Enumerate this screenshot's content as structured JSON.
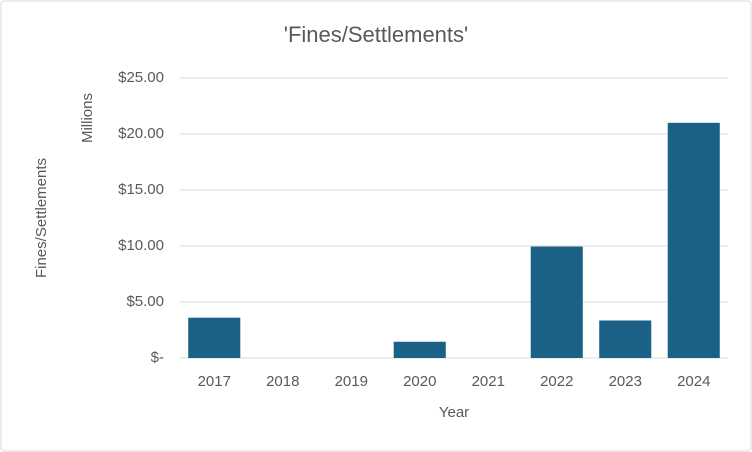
{
  "chart_data": {
    "type": "bar",
    "title": "'Fines/Settlements'",
    "y_label": "Fines/Settlements",
    "units_label": "Millions",
    "x_label": "Year",
    "categories": [
      "2017",
      "2018",
      "2019",
      "2020",
      "2021",
      "2022",
      "2023",
      "2024"
    ],
    "values": [
      3.6,
      0,
      0,
      1.45,
      0,
      9.95,
      3.35,
      21.0
    ],
    "color": "#1b6185",
    "ylim": [
      0,
      25
    ],
    "yticks": [
      {
        "value": 0,
        "label": "$-"
      },
      {
        "value": 5,
        "label": "$5.00"
      },
      {
        "value": 10,
        "label": "$10.00"
      },
      {
        "value": 15,
        "label": "$15.00"
      },
      {
        "value": 20,
        "label": "$20.00"
      },
      {
        "value": 25,
        "label": "$25.00"
      }
    ],
    "grid": true
  }
}
